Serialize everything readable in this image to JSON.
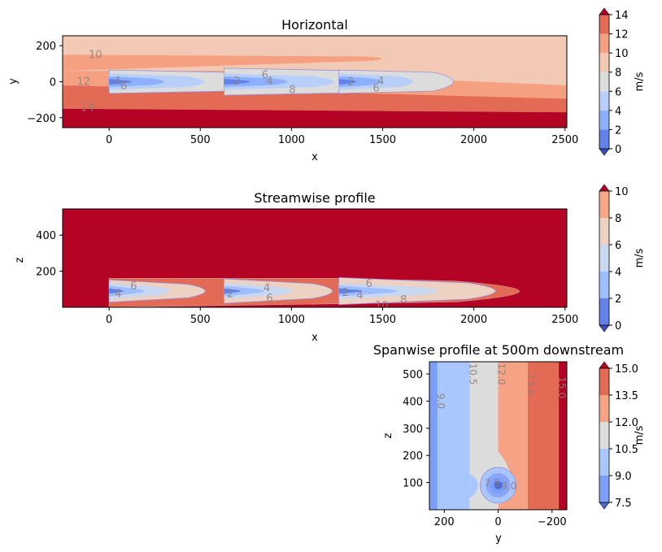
{
  "chart_data": [
    {
      "type": "contour",
      "title": "Horizontal",
      "xlabel": "x",
      "ylabel": "y",
      "xlim": [
        -255,
        2510
      ],
      "ylim": [
        -255,
        255
      ],
      "x_ticks": [
        "0",
        "500",
        "1000",
        "1500",
        "2000",
        "2500"
      ],
      "y_ticks": [
        "200",
        "0",
        "−200"
      ],
      "colorbar": {
        "label": "m/s",
        "levels": [
          0,
          2,
          4,
          6,
          8,
          10,
          12,
          14
        ],
        "tick_labels": [
          "0",
          "2",
          "4",
          "6",
          "8",
          "10",
          "12",
          "14"
        ],
        "colors": [
          "#3b4cc0",
          "#6282ea",
          "#8db0fe",
          "#b8d0f9",
          "#dddcdc",
          "#f2c9b4",
          "#f5a081",
          "#e36b56",
          "#b40426"
        ],
        "extend": "both"
      },
      "bands": [
        {
          "value_range": [
            12,
            14
          ],
          "y_top": -105,
          "y_bottom": -150
        },
        {
          "value_range": [
            14,
            16
          ],
          "y_top": -150,
          "y_bottom": -255
        }
      ],
      "turbine_x": [
        0,
        630,
        1260
      ],
      "contour_labels": [
        {
          "text": "10",
          "x": -75,
          "y": 150
        },
        {
          "text": "12",
          "x": -140,
          "y": 0
        },
        {
          "text": "14",
          "x": -120,
          "y": -145
        },
        {
          "text": "4",
          "x": 45,
          "y": 2
        },
        {
          "text": "6",
          "x": 80,
          "y": -25
        },
        {
          "text": "2",
          "x": 700,
          "y": 2
        },
        {
          "text": "6",
          "x": 855,
          "y": 35
        },
        {
          "text": "4",
          "x": 880,
          "y": 2
        },
        {
          "text": "8",
          "x": 1005,
          "y": -45
        },
        {
          "text": "2",
          "x": 1325,
          "y": -2
        },
        {
          "text": "4",
          "x": 1490,
          "y": 2
        },
        {
          "text": "6",
          "x": 1465,
          "y": -35
        }
      ]
    },
    {
      "type": "contour",
      "title": "Streamwise profile",
      "xlabel": "x",
      "ylabel": "z",
      "xlim": [
        -255,
        2510
      ],
      "ylim": [
        0,
        545
      ],
      "x_ticks": [
        "0",
        "500",
        "1000",
        "1500",
        "2000",
        "2500"
      ],
      "y_ticks": [
        "400",
        "200"
      ],
      "colorbar": {
        "label": "m/s",
        "levels": [
          0,
          2,
          4,
          6,
          8,
          10
        ],
        "tick_labels": [
          "0",
          "2",
          "4",
          "6",
          "8",
          "10"
        ],
        "colors": [
          "#3b4cc0",
          "#6282ea",
          "#9ebeff",
          "#c9d7f0",
          "#edd1c2",
          "#f7a889",
          "#e36b56",
          "#b40426"
        ],
        "extend": "both"
      },
      "hub_height_z": 90,
      "turbine_x": [
        0,
        630,
        1260
      ],
      "contour_labels": [
        {
          "text": "6",
          "x": 135,
          "y": 118
        },
        {
          "text": "4",
          "x": 50,
          "y": 75
        },
        {
          "text": "2",
          "x": 665,
          "y": 75
        },
        {
          "text": "4",
          "x": 865,
          "y": 105
        },
        {
          "text": "6",
          "x": 880,
          "y": 50
        },
        {
          "text": "6",
          "x": 1425,
          "y": 130
        },
        {
          "text": "2",
          "x": 1295,
          "y": 80
        },
        {
          "text": "4",
          "x": 1375,
          "y": 65
        },
        {
          "text": "10",
          "x": 1495,
          "y": 10
        },
        {
          "text": "8",
          "x": 1615,
          "y": 40
        }
      ]
    },
    {
      "type": "contour",
      "title": "Spanwise profile at 500m downstream",
      "xlabel": "y",
      "ylabel": "z",
      "xlim": [
        255,
        -255
      ],
      "ylim": [
        0,
        545
      ],
      "x_ticks": [
        "200",
        "0",
        "−200"
      ],
      "y_ticks": [
        "500",
        "400",
        "300",
        "200",
        "100"
      ],
      "colorbar": {
        "label": "m/s",
        "levels": [
          7.5,
          9.0,
          10.5,
          12.0,
          13.5,
          15.0
        ],
        "tick_labels": [
          "7.5",
          "9.0",
          "10.5",
          "12.0",
          "13.5",
          "15.0"
        ],
        "colors": [
          "#4f69d9",
          "#7b9ff9",
          "#aac7fd",
          "#dddcdc",
          "#f6a385",
          "#e36b56",
          "#b40426"
        ],
        "extend": "both"
      },
      "vertical_bands": [
        {
          "value_range": [
            7.5,
            9.0
          ],
          "y_from": 255,
          "y_to": 225
        },
        {
          "value_range": [
            9.0,
            10.5
          ],
          "y_from": 225,
          "y_to": 105
        },
        {
          "value_range": [
            10.5,
            12.0
          ],
          "y_from": 105,
          "y_to": 0
        },
        {
          "value_range": [
            12.0,
            13.5
          ],
          "y_from": 0,
          "y_to": -110
        },
        {
          "value_range": [
            13.5,
            15.0
          ],
          "y_from": -110,
          "y_to": -225
        },
        {
          "value_range": [
            15.0,
            16.5
          ],
          "y_from": -225,
          "y_to": -255
        }
      ],
      "rotor_center": {
        "y": 0,
        "z": 90
      },
      "contour_labels": [
        {
          "text": "9.0",
          "y": 225,
          "z": 400
        },
        {
          "text": "10.5",
          "y": 105,
          "z": 500
        },
        {
          "text": "12.0",
          "y": 0,
          "z": 500
        },
        {
          "text": "13.5",
          "y": -110,
          "z": 460
        },
        {
          "text": "15.0",
          "y": -225,
          "z": 450
        },
        {
          "text": "7.5",
          "y": 22,
          "z": 85
        },
        {
          "text": "9.0",
          "y": -40,
          "z": 75
        }
      ]
    }
  ]
}
